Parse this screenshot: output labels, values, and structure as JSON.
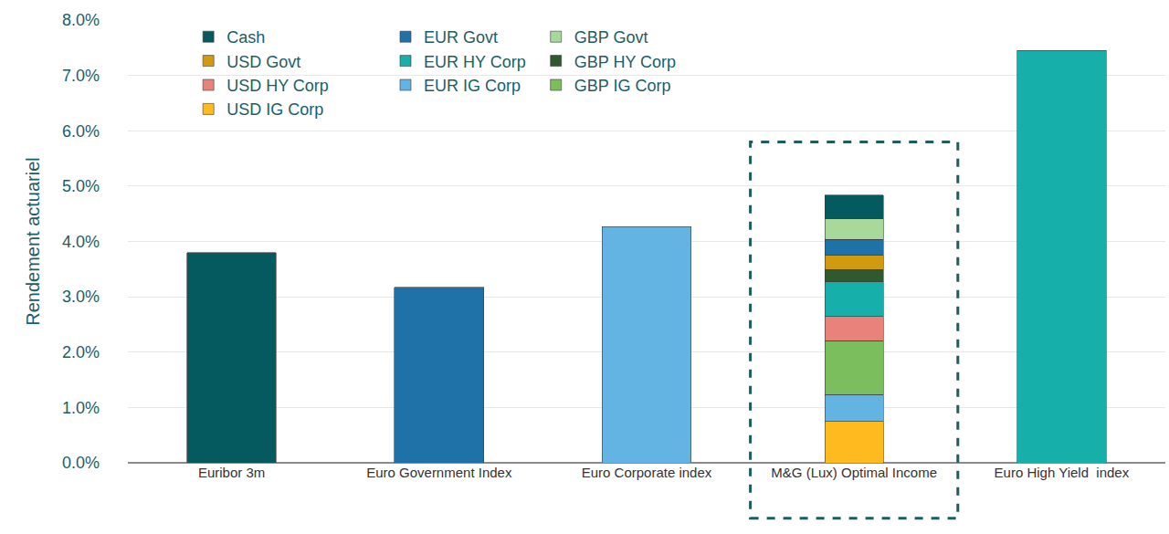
{
  "chart_data": {
    "type": "bar",
    "stacked": true,
    "ylabel": "Rendement actuariel",
    "categories": [
      "Euribor 3m",
      "Euro Government Index",
      "Euro Corporate index",
      "M&G (Lux) Optimal Income",
      "Euro High Yield  index"
    ],
    "values": [
      3.8,
      3.17,
      4.27,
      null,
      7.45
    ],
    "colors": [
      "#045A5E",
      "#1F72A8",
      "#63B3E3",
      null,
      "#16AFAA"
    ],
    "series": [
      {
        "name": "USD IG Corp",
        "color": "#FFBA1F",
        "values": [
          null,
          null,
          null,
          0.75,
          null
        ]
      },
      {
        "name": "EUR IG Corp",
        "color": "#63B3E3",
        "values": [
          null,
          null,
          null,
          0.48,
          null
        ]
      },
      {
        "name": "GBP IG Corp",
        "color": "#7BBE5E",
        "values": [
          null,
          null,
          null,
          0.98,
          null
        ]
      },
      {
        "name": "USD HY Corp",
        "color": "#E8827A",
        "values": [
          null,
          null,
          null,
          0.43,
          null
        ]
      },
      {
        "name": "EUR HY Corp",
        "color": "#16AFAA",
        "values": [
          null,
          null,
          null,
          0.63,
          null
        ]
      },
      {
        "name": "GBP HY Corp",
        "color": "#2F5A2E",
        "values": [
          null,
          null,
          null,
          0.22,
          null
        ]
      },
      {
        "name": "USD Govt",
        "color": "#D29A0F",
        "values": [
          null,
          null,
          null,
          0.27,
          null
        ]
      },
      {
        "name": "EUR Govt",
        "color": "#1F72A8",
        "values": [
          null,
          null,
          null,
          0.28,
          null
        ]
      },
      {
        "name": "GBP Govt",
        "color": "#A8D89A",
        "values": [
          null,
          null,
          null,
          0.37,
          null
        ]
      },
      {
        "name": "Cash",
        "color": "#045A5E",
        "values": [
          null,
          null,
          null,
          0.43,
          null
        ]
      }
    ],
    "ylim": [
      0,
      8
    ],
    "yticks": [
      {
        "value": 0,
        "label": "0.0%"
      },
      {
        "value": 1,
        "label": "1.0%"
      },
      {
        "value": 2,
        "label": "2.0%"
      },
      {
        "value": 3,
        "label": "3.0%"
      },
      {
        "value": 4,
        "label": "4.0%"
      },
      {
        "value": 5,
        "label": "5.0%"
      },
      {
        "value": 6,
        "label": "6.0%"
      },
      {
        "value": 7,
        "label": "7.0%"
      },
      {
        "value": 8,
        "label": "8.0%"
      }
    ],
    "grid": true,
    "legend": "top left"
  }
}
